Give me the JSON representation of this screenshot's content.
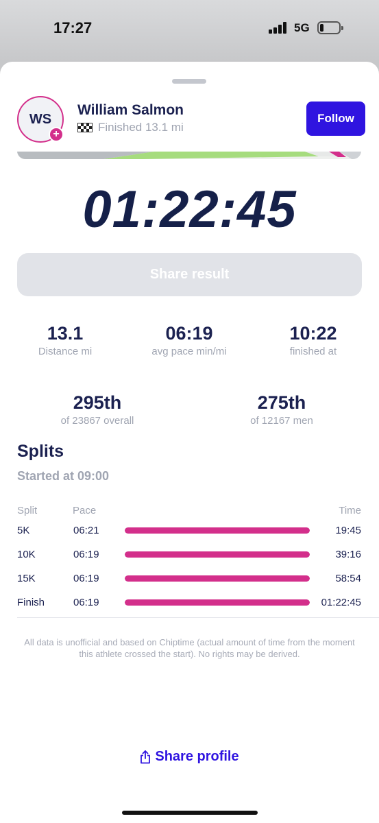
{
  "status_bar": {
    "time": "17:27",
    "network": "5G",
    "battery_level": 0.2
  },
  "athlete": {
    "initials": "WS",
    "name": "William Salmon",
    "status": "Finished 13.1 mi",
    "status_icon": "checkered-flag-icon",
    "follow_label": "Follow"
  },
  "result": {
    "time": "01:22:45",
    "share_result_label": "Share result"
  },
  "stats": [
    {
      "value": "13.1",
      "label": "Distance mi"
    },
    {
      "value": "06:19",
      "label": "avg pace min/mi"
    },
    {
      "value": "10:22",
      "label": "finished at"
    }
  ],
  "rankings": [
    {
      "value": "295th",
      "label": "of 23867 overall"
    },
    {
      "value": "275th",
      "label": "of 12167 men"
    }
  ],
  "splits": {
    "title": "Splits",
    "started": "Started at 09:00",
    "headers": {
      "split": "Split",
      "pace": "Pace",
      "time": "Time"
    },
    "rows": [
      {
        "name": "5K",
        "pace": "06:21",
        "time": "19:45",
        "progress": 1.0
      },
      {
        "name": "10K",
        "pace": "06:19",
        "time": "39:16",
        "progress": 1.0
      },
      {
        "name": "15K",
        "pace": "06:19",
        "time": "58:54",
        "progress": 1.0
      },
      {
        "name": "Finish",
        "pace": "06:19",
        "time": "01:22:45",
        "progress": 1.0
      }
    ]
  },
  "disclaimer": "All data is unofficial and based on Chiptime (actual amount of time from the moment this athlete crossed the start). No rights may be derived.",
  "share_profile_label": "Share profile",
  "colors": {
    "accent": "#2f14e0",
    "progress": "#d32f8b",
    "text_dark": "#1b2150",
    "text_muted": "#a0a5b2"
  }
}
